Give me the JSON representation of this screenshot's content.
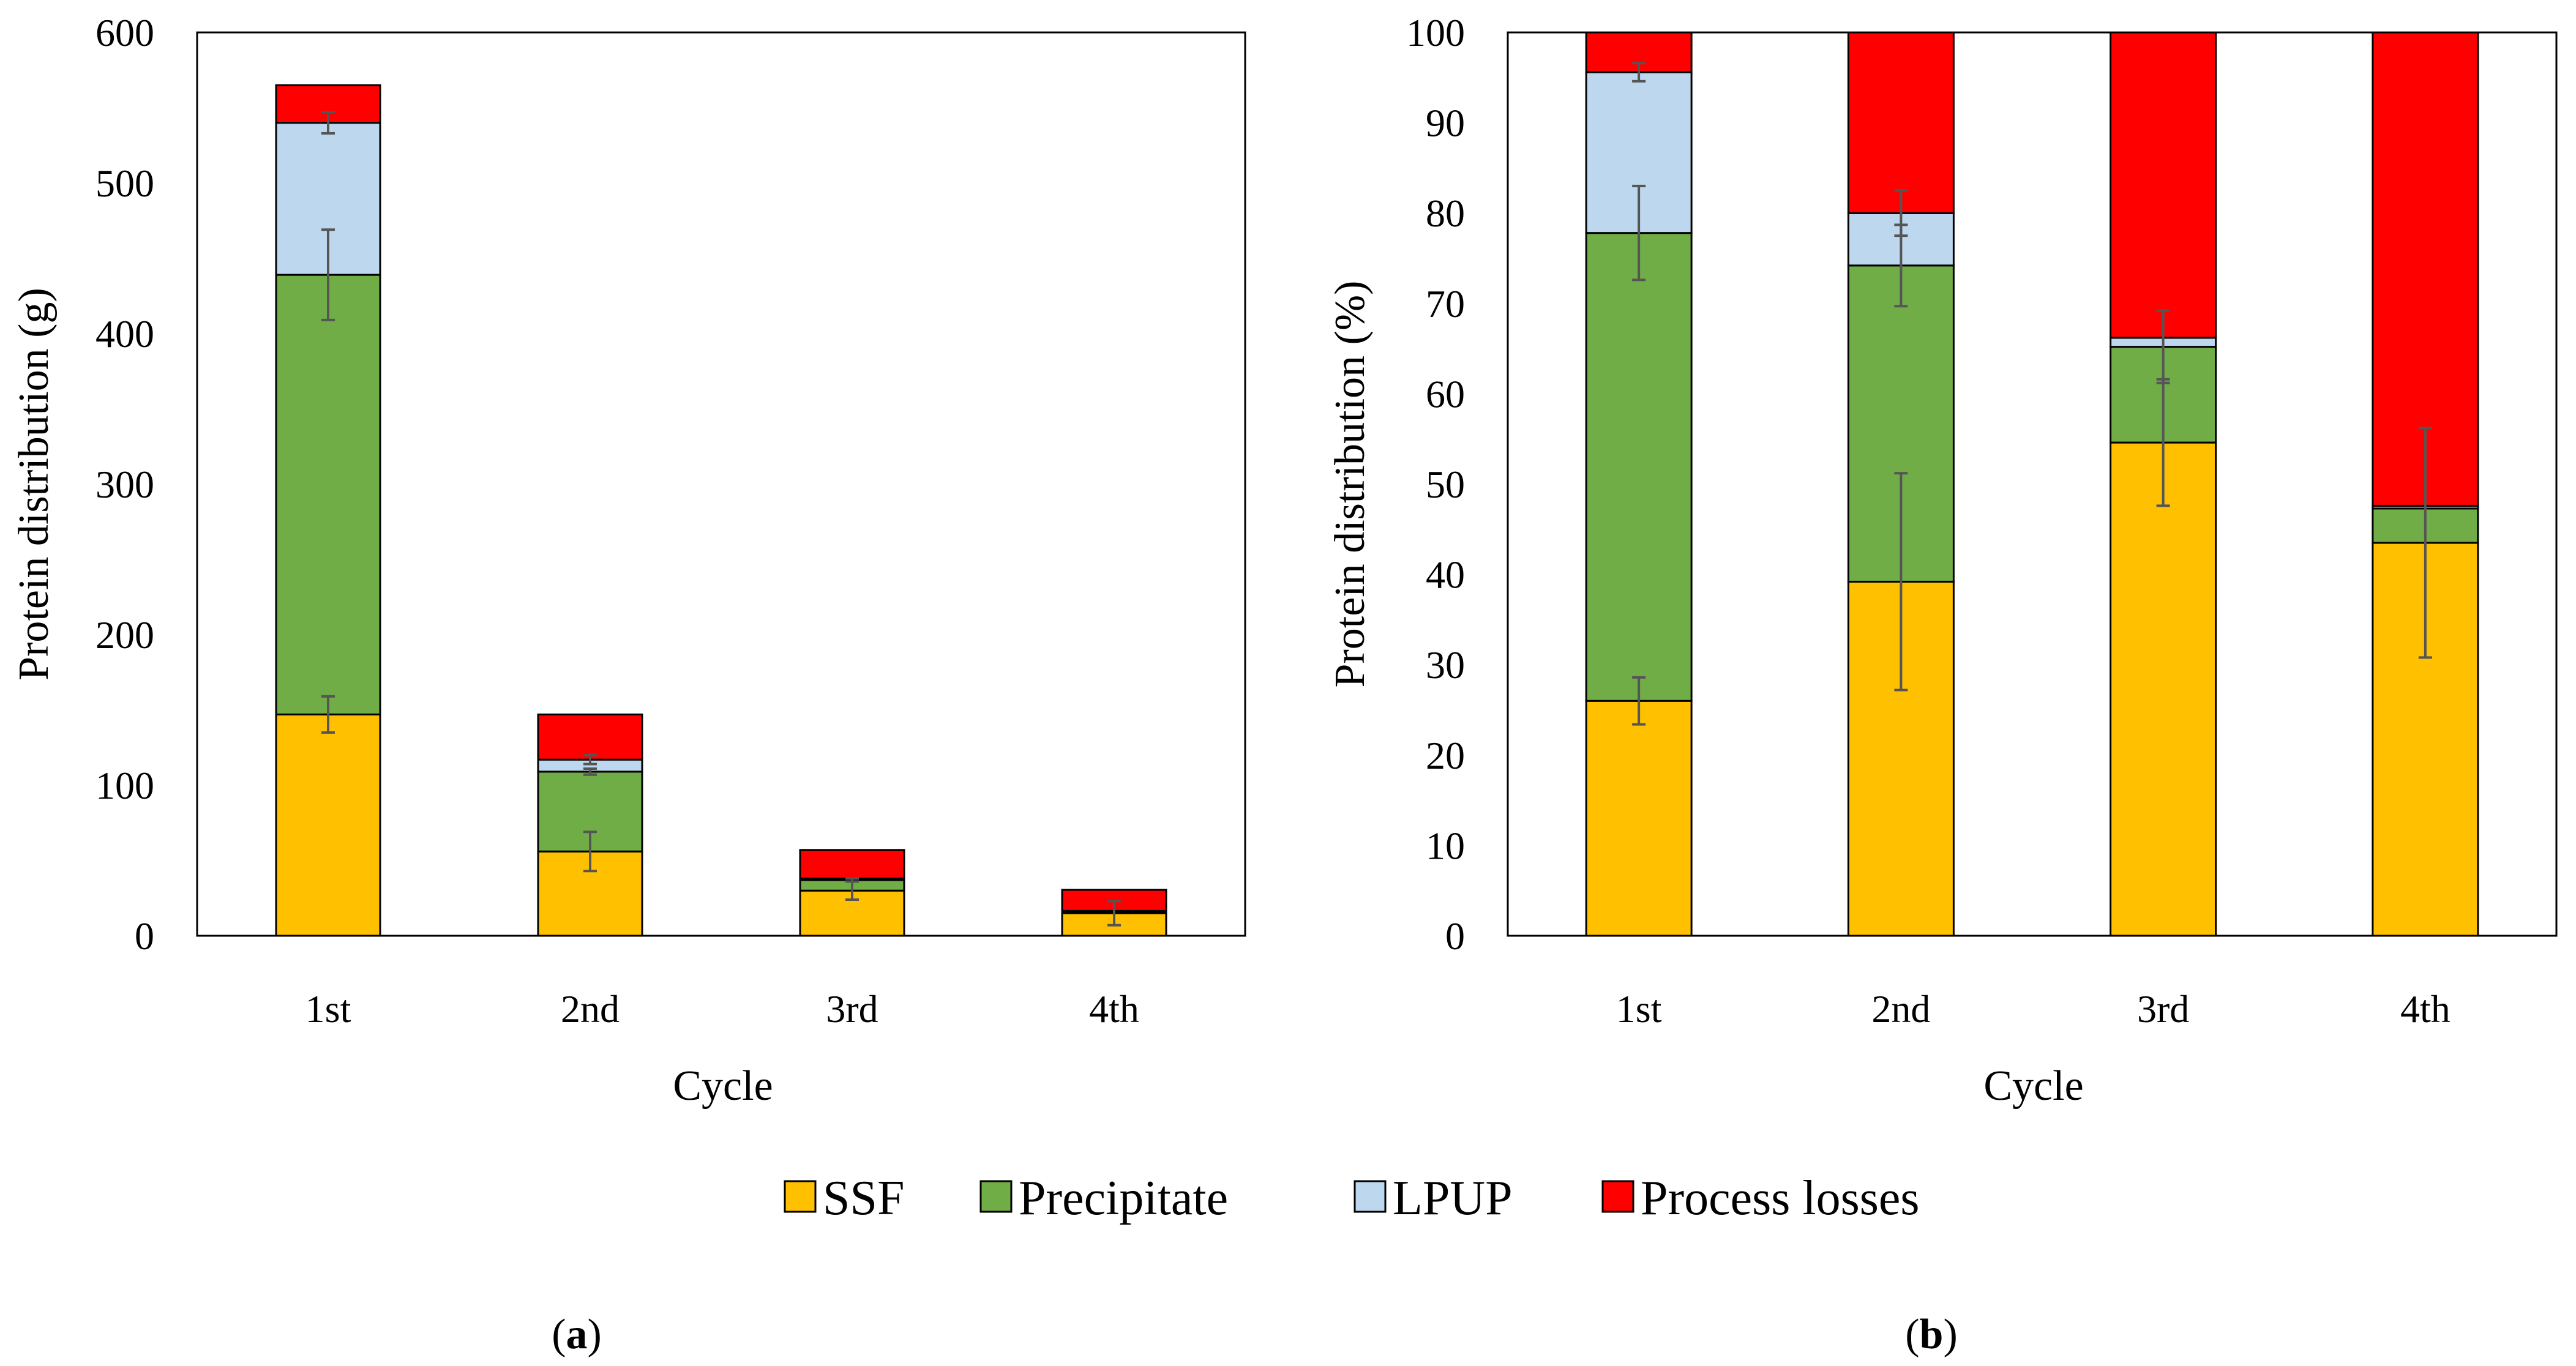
{
  "legend": [
    {
      "name": "SSF",
      "color": "#FFC000"
    },
    {
      "name": "Precipitate",
      "color": "#70AD47"
    },
    {
      "name": "LPUP",
      "color": "#BDD7EE"
    },
    {
      "name": "Process losses",
      "color": "#FF0000"
    }
  ],
  "chart_data": [
    {
      "type": "bar",
      "stacked": true,
      "panel_label": "a",
      "categories": [
        "1st",
        "2nd",
        "3rd",
        "4th"
      ],
      "xlabel": "Cycle",
      "ylabel": "Protein distribution  (g)",
      "ylim": [
        0,
        600
      ],
      "yticks": [
        0,
        100,
        200,
        300,
        400,
        500,
        600
      ],
      "grid": false,
      "series": [
        {
          "name": "SSF",
          "color": "#FFC000",
          "values": [
            147,
            56,
            30,
            15
          ],
          "errors": [
            12,
            13,
            6,
            8
          ]
        },
        {
          "name": "Precipitate",
          "color": "#70AD47",
          "values": [
            292,
            53,
            7,
            1
          ],
          "errors": [
            30,
            2,
            1,
            0
          ]
        },
        {
          "name": "LPUP",
          "color": "#BDD7EE",
          "values": [
            101,
            8,
            1,
            0.5
          ],
          "errors": [
            7,
            3,
            0,
            0
          ]
        },
        {
          "name": "Process losses",
          "color": "#FF0000",
          "values": [
            25,
            30,
            19,
            14
          ],
          "errors": [
            0,
            0,
            0,
            0
          ]
        }
      ]
    },
    {
      "type": "bar",
      "stacked": true,
      "panel_label": "b",
      "categories": [
        "1st",
        "2nd",
        "3rd",
        "4th"
      ],
      "xlabel": "Cycle",
      "ylabel": "Protein distribution  (%)",
      "ylim": [
        0,
        100
      ],
      "yticks": [
        0,
        10,
        20,
        30,
        40,
        50,
        60,
        70,
        80,
        90,
        100
      ],
      "grid": false,
      "series": [
        {
          "name": "SSF",
          "color": "#FFC000",
          "values": [
            26,
            39.2,
            54.6,
            43.5
          ],
          "errors": [
            2.6,
            12,
            7,
            12.7
          ]
        },
        {
          "name": "Precipitate",
          "color": "#70AD47",
          "values": [
            51.8,
            35,
            10.6,
            3.8
          ],
          "errors": [
            5.2,
            4.5,
            4,
            0
          ]
        },
        {
          "name": "LPUP",
          "color": "#BDD7EE",
          "values": [
            17.8,
            5.8,
            1,
            0.3
          ],
          "errors": [
            1,
            2.5,
            0,
            0
          ]
        },
        {
          "name": "Process losses",
          "color": "#FF0000",
          "values": [
            4.4,
            20,
            33.8,
            52.4
          ],
          "errors": [
            0,
            0,
            0,
            0
          ]
        }
      ]
    }
  ]
}
